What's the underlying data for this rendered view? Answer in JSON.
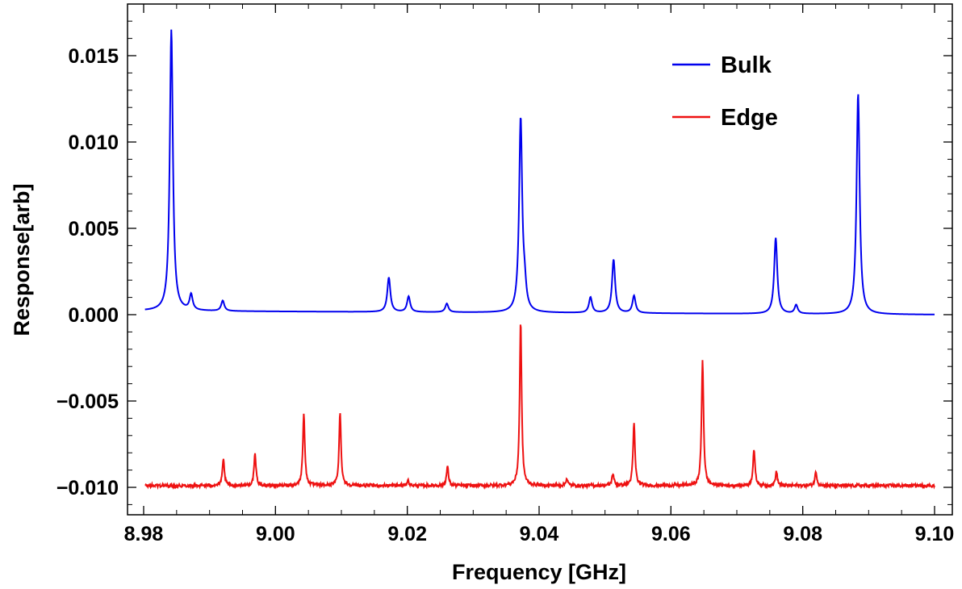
{
  "chart_data": {
    "type": "line",
    "title": "",
    "xlabel": "Frequency [GHz]",
    "ylabel": "Response[arb]",
    "xlim": [
      8.98,
      9.1
    ],
    "ylim": [
      -0.0115,
      0.0178
    ],
    "x_ticks": [
      "8.98",
      "9.00",
      "9.02",
      "9.04",
      "9.06",
      "9.08",
      "9.10"
    ],
    "y_ticks": [
      "0.015",
      "0.010",
      "0.005",
      "0.000",
      "−0.005",
      "−0.010"
    ],
    "x_tick_values": [
      8.98,
      9.0,
      9.02,
      9.04,
      9.06,
      9.08,
      9.1
    ],
    "y_tick_values": [
      0.015,
      0.01,
      0.005,
      0.0,
      -0.005,
      -0.01
    ],
    "grid": false,
    "legend": "top-right",
    "series": [
      {
        "name": "Bulk",
        "color": "#0000ee",
        "baseline": 0.0,
        "peaks": [
          {
            "x": 8.9842,
            "y": 0.0163
          },
          {
            "x": 8.9872,
            "y": 0.0009
          },
          {
            "x": 8.992,
            "y": 0.0006
          },
          {
            "x": 9.0172,
            "y": 0.002
          },
          {
            "x": 9.0202,
            "y": 0.0009
          },
          {
            "x": 9.026,
            "y": 0.0005
          },
          {
            "x": 9.0372,
            "y": 0.0112
          },
          {
            "x": 9.0378,
            "y": 0.0011
          },
          {
            "x": 9.0478,
            "y": 0.0009
          },
          {
            "x": 9.0513,
            "y": 0.0031
          },
          {
            "x": 9.0544,
            "y": 0.001
          },
          {
            "x": 9.0759,
            "y": 0.0044
          },
          {
            "x": 9.079,
            "y": 0.0005
          },
          {
            "x": 9.0884,
            "y": 0.0128
          }
        ]
      },
      {
        "name": "Edge",
        "color": "#ee1111",
        "baseline": -0.0099,
        "peaks": [
          {
            "x": 8.9921,
            "y": -0.0084
          },
          {
            "x": 8.9969,
            "y": -0.0081
          },
          {
            "x": 9.0043,
            "y": -0.0057
          },
          {
            "x": 9.0098,
            "y": -0.0057
          },
          {
            "x": 9.0201,
            "y": -0.0096
          },
          {
            "x": 9.0261,
            "y": -0.0088
          },
          {
            "x": 9.0372,
            "y": -0.0004
          },
          {
            "x": 9.0442,
            "y": -0.0095
          },
          {
            "x": 9.0512,
            "y": -0.0092
          },
          {
            "x": 9.0544,
            "y": -0.0063
          },
          {
            "x": 9.0648,
            "y": -0.0026
          },
          {
            "x": 9.0726,
            "y": -0.0078
          },
          {
            "x": 9.076,
            "y": -0.0091
          },
          {
            "x": 9.082,
            "y": -0.0091
          }
        ]
      }
    ]
  }
}
